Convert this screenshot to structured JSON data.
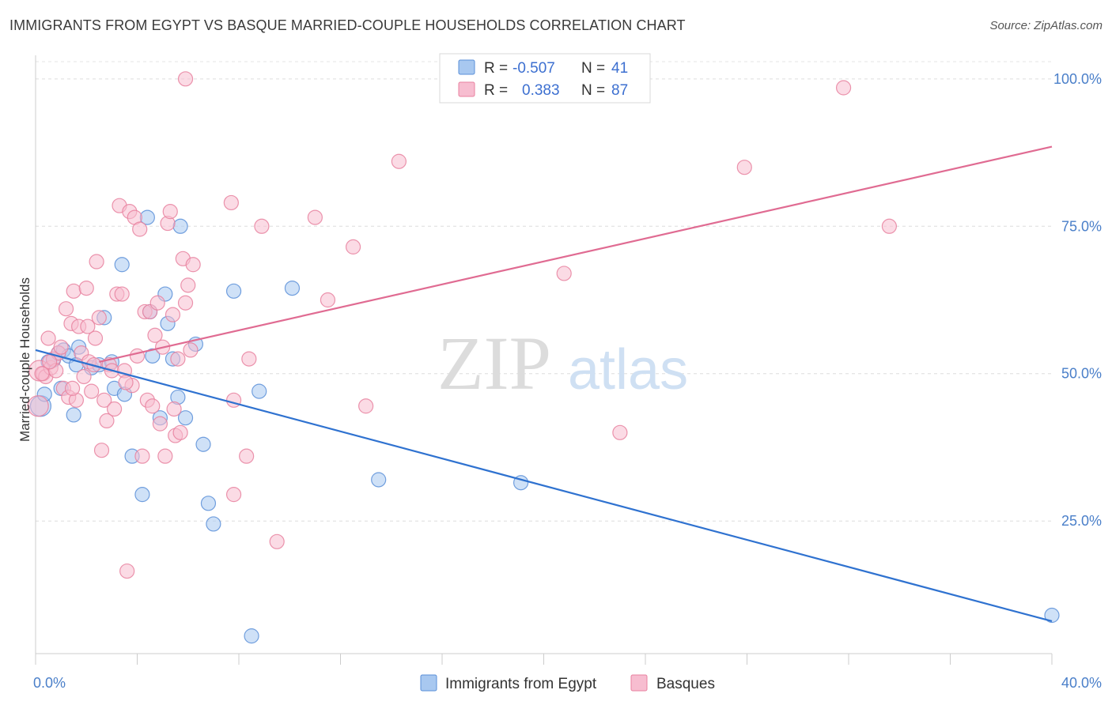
{
  "header": {
    "title": "IMMIGRANTS FROM EGYPT VS BASQUE MARRIED-COUPLE HOUSEHOLDS CORRELATION CHART",
    "source": "Source: ZipAtlas.com"
  },
  "watermark": {
    "zip": "ZIP",
    "atlas": "atlas"
  },
  "legend_top": [
    {
      "r_label": "R =",
      "r_value": "-0.507",
      "n_label": "N =",
      "n_value": "41",
      "color": "#a8c8f0",
      "stroke": "#5a8fd8"
    },
    {
      "r_label": "R =",
      "r_value": "0.383",
      "n_label": "N =",
      "n_value": "87",
      "color": "#f7bdd0",
      "stroke": "#e8819f"
    }
  ],
  "legend_bottom": [
    {
      "label": "Immigrants from Egypt",
      "color": "#a8c8f0",
      "stroke": "#5a8fd8"
    },
    {
      "label": "Basques",
      "color": "#f7bdd0",
      "stroke": "#e8819f"
    }
  ],
  "chart_data": {
    "type": "scatter",
    "title": "IMMIGRANTS FROM EGYPT VS BASQUE MARRIED-COUPLE HOUSEHOLDS CORRELATION CHART",
    "xlabel": "",
    "ylabel": "Married-couple Households",
    "xlim": [
      0,
      40
    ],
    "ylim": [
      2.5,
      104
    ],
    "x_tick_labels": [
      "0.0%",
      "40.0%"
    ],
    "y_ticks": [
      25,
      50,
      75,
      100
    ],
    "y_tick_labels": [
      "25.0%",
      "50.0%",
      "75.0%",
      "100.0%"
    ],
    "grid": true,
    "legend_position": "top-center",
    "series": [
      {
        "name": "Immigrants from Egypt",
        "color": "#5a8fd8",
        "fill": "#a8c8f0",
        "R": -0.507,
        "N": 41,
        "trend": [
          [
            0,
            54.0
          ],
          [
            40,
            8.0
          ]
        ],
        "points": [
          [
            0.2,
            44.5
          ],
          [
            0.35,
            46.5
          ],
          [
            0.5,
            52.0
          ],
          [
            0.7,
            52.3
          ],
          [
            0.9,
            53.5
          ],
          [
            1.0,
            47.5
          ],
          [
            1.1,
            54.0
          ],
          [
            1.3,
            53.0
          ],
          [
            1.5,
            43.0
          ],
          [
            1.6,
            51.5
          ],
          [
            1.7,
            54.5
          ],
          [
            2.2,
            51.0
          ],
          [
            2.5,
            51.5
          ],
          [
            2.7,
            59.5
          ],
          [
            3.0,
            52.0
          ],
          [
            3.1,
            47.5
          ],
          [
            3.4,
            68.5
          ],
          [
            3.5,
            46.5
          ],
          [
            3.8,
            36.0
          ],
          [
            4.2,
            29.5
          ],
          [
            4.4,
            76.5
          ],
          [
            4.5,
            60.5
          ],
          [
            4.6,
            53.0
          ],
          [
            4.9,
            42.5
          ],
          [
            5.1,
            63.5
          ],
          [
            5.2,
            58.5
          ],
          [
            5.4,
            52.5
          ],
          [
            5.6,
            46.0
          ],
          [
            5.7,
            75.0
          ],
          [
            5.9,
            42.5
          ],
          [
            6.3,
            55.0
          ],
          [
            6.6,
            38.0
          ],
          [
            6.8,
            28.0
          ],
          [
            7.0,
            24.5
          ],
          [
            7.8,
            64.0
          ],
          [
            8.5,
            5.5
          ],
          [
            8.8,
            47.0
          ],
          [
            10.1,
            64.5
          ],
          [
            13.5,
            32.0
          ],
          [
            19.1,
            31.5
          ],
          [
            40.0,
            9.0
          ]
        ]
      },
      {
        "name": "Basques",
        "color": "#e8819f",
        "fill": "#f7bdd0",
        "R": 0.383,
        "N": 87,
        "trend": [
          [
            2.5,
            52.0
          ],
          [
            40,
            88.5
          ]
        ],
        "points": [
          [
            0.1,
            44.5
          ],
          [
            0.15,
            50.5
          ],
          [
            0.3,
            50.0
          ],
          [
            0.4,
            49.5
          ],
          [
            0.5,
            56.0
          ],
          [
            0.6,
            51.0
          ],
          [
            0.7,
            52.5
          ],
          [
            0.8,
            50.5
          ],
          [
            0.9,
            53.5
          ],
          [
            1.0,
            54.5
          ],
          [
            1.1,
            47.5
          ],
          [
            1.2,
            61.0
          ],
          [
            1.3,
            46.0
          ],
          [
            1.4,
            58.5
          ],
          [
            1.5,
            64.0
          ],
          [
            1.6,
            45.5
          ],
          [
            1.7,
            58.0
          ],
          [
            1.8,
            53.5
          ],
          [
            1.9,
            49.5
          ],
          [
            2.0,
            64.5
          ],
          [
            2.1,
            52.0
          ],
          [
            2.2,
            47.0
          ],
          [
            2.3,
            51.5
          ],
          [
            2.4,
            69.0
          ],
          [
            2.5,
            59.5
          ],
          [
            2.6,
            37.0
          ],
          [
            2.7,
            45.5
          ],
          [
            2.8,
            42.0
          ],
          [
            2.9,
            51.5
          ],
          [
            3.0,
            50.5
          ],
          [
            3.1,
            44.0
          ],
          [
            3.2,
            63.5
          ],
          [
            3.3,
            78.5
          ],
          [
            3.4,
            63.5
          ],
          [
            3.5,
            50.5
          ],
          [
            3.6,
            16.5
          ],
          [
            3.7,
            77.5
          ],
          [
            3.8,
            48.0
          ],
          [
            3.9,
            76.5
          ],
          [
            4.0,
            53.0
          ],
          [
            4.1,
            74.5
          ],
          [
            4.2,
            36.0
          ],
          [
            4.3,
            60.5
          ],
          [
            4.4,
            45.5
          ],
          [
            4.5,
            60.5
          ],
          [
            4.6,
            44.5
          ],
          [
            4.7,
            56.5
          ],
          [
            4.8,
            62.0
          ],
          [
            4.9,
            41.5
          ],
          [
            5.0,
            54.5
          ],
          [
            5.1,
            36.0
          ],
          [
            5.2,
            75.5
          ],
          [
            5.3,
            77.5
          ],
          [
            5.4,
            60.0
          ],
          [
            5.5,
            39.5
          ],
          [
            5.6,
            52.5
          ],
          [
            5.7,
            40.0
          ],
          [
            5.8,
            69.5
          ],
          [
            5.9,
            62.0
          ],
          [
            6.0,
            65.0
          ],
          [
            6.1,
            54.0
          ],
          [
            6.2,
            68.5
          ],
          [
            5.9,
            100.0
          ],
          [
            7.7,
            79.0
          ],
          [
            7.8,
            45.5
          ],
          [
            7.8,
            29.5
          ],
          [
            8.3,
            36.0
          ],
          [
            8.4,
            52.5
          ],
          [
            8.9,
            75.0
          ],
          [
            9.5,
            21.5
          ],
          [
            11.0,
            76.5
          ],
          [
            11.5,
            62.5
          ],
          [
            12.5,
            71.5
          ],
          [
            13.0,
            44.5
          ],
          [
            14.3,
            86.0
          ],
          [
            20.8,
            67.0
          ],
          [
            23.0,
            40.0
          ],
          [
            27.9,
            85.0
          ],
          [
            31.8,
            98.5
          ],
          [
            33.6,
            75.0
          ],
          [
            0.25,
            50.0
          ],
          [
            0.55,
            52.0
          ],
          [
            1.45,
            47.5
          ],
          [
            2.05,
            58.0
          ],
          [
            3.55,
            48.5
          ],
          [
            5.45,
            44.0
          ],
          [
            2.35,
            56.0
          ]
        ]
      }
    ]
  }
}
